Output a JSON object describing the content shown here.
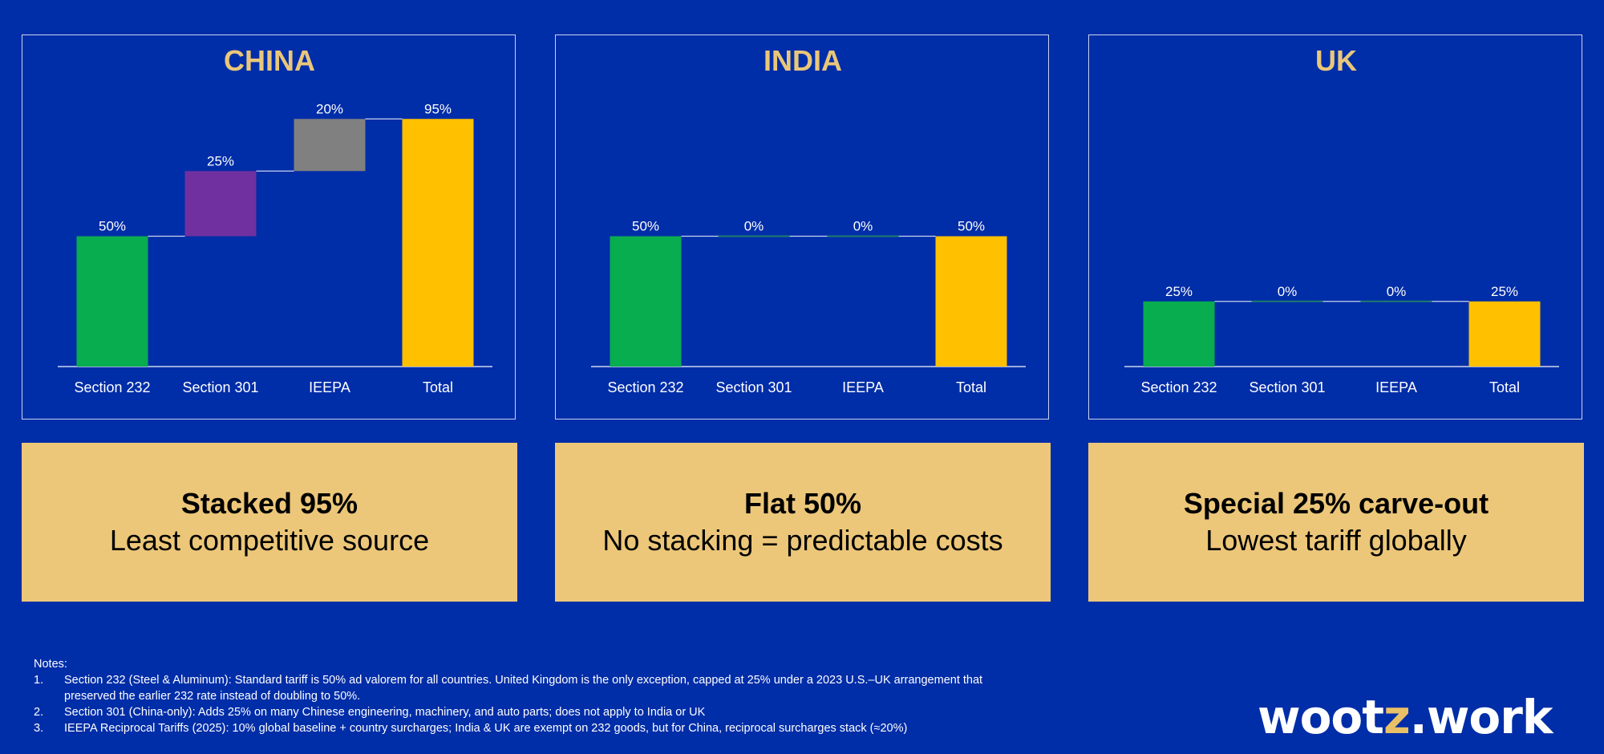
{
  "chart_data": [
    {
      "type": "bar",
      "subtype": "waterfall",
      "title": "CHINA",
      "categories": [
        "Section 232",
        "Section 301",
        "IEEPA",
        "Total"
      ],
      "values": [
        50,
        25,
        20,
        95
      ],
      "labels": [
        "50%",
        "25%",
        "20%",
        "95%"
      ],
      "colors": [
        "#08AD4F",
        "#7030A0",
        "#808080",
        "#FFC000"
      ],
      "ylim": [
        0,
        100
      ]
    },
    {
      "type": "bar",
      "subtype": "waterfall",
      "title": "INDIA",
      "categories": [
        "Section 232",
        "Section 301",
        "IEEPA",
        "Total"
      ],
      "values": [
        50,
        0,
        0,
        50
      ],
      "labels": [
        "50%",
        "0%",
        "0%",
        "50%"
      ],
      "colors": [
        "#08AD4F",
        "#7030A0",
        "#808080",
        "#FFC000"
      ],
      "ylim": [
        0,
        100
      ]
    },
    {
      "type": "bar",
      "subtype": "waterfall",
      "title": "UK",
      "categories": [
        "Section 232",
        "Section 301",
        "IEEPA",
        "Total"
      ],
      "values": [
        25,
        0,
        0,
        25
      ],
      "labels": [
        "25%",
        "0%",
        "0%",
        "25%"
      ],
      "colors": [
        "#08AD4F",
        "#7030A0",
        "#808080",
        "#FFC000"
      ],
      "ylim": [
        0,
        100
      ]
    }
  ],
  "title_color": "#E9C77A",
  "callouts": [
    {
      "head": "Stacked 95%",
      "sub": "Least competitive source"
    },
    {
      "head": "Flat 50%",
      "sub": "No stacking = predictable costs"
    },
    {
      "head": "Special 25% carve-out",
      "sub": "Lowest tariff globally"
    }
  ],
  "notes": {
    "title": "Notes:",
    "items": [
      {
        "num": "1.",
        "text": "Section 232 (Steel & Aluminum): Standard tariff is 50% ad valorem for all countries. United Kingdom is the only exception, capped at 25% under a 2023 U.S.–UK arrangement that preserved the earlier 232 rate instead of doubling to 50%."
      },
      {
        "num": "2.",
        "text": "Section 301 (China-only): Adds 25% on many Chinese engineering, machinery, and auto parts; does not apply to India or UK"
      },
      {
        "num": "3.",
        "text": "IEEPA Reciprocal Tariffs (2025): 10% global baseline + country surcharges; India & UK are exempt on 232 goods, but for China, reciprocal surcharges stack (≈20%)"
      }
    ]
  },
  "logo": {
    "part1": "woot",
    "part2": "z",
    "part3": ".work"
  }
}
